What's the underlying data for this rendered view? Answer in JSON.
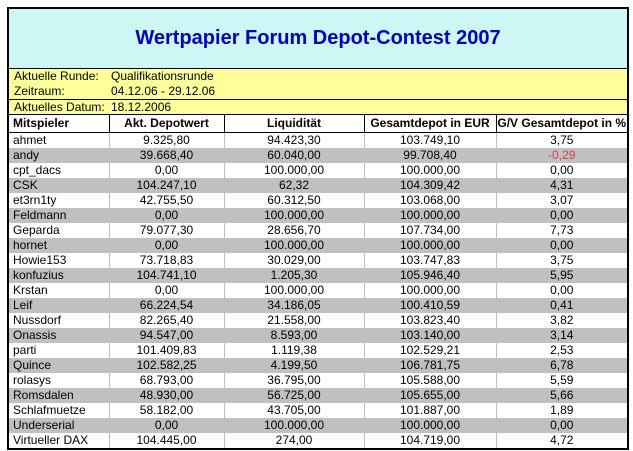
{
  "title": "Wertpapier Forum Depot-Contest 2007",
  "info": {
    "rows": [
      {
        "label": "Aktuelle Runde:",
        "value": "Qualifikationsrunde"
      },
      {
        "label": "Zeitraum:",
        "value": "04.12.06 - 29.12.06"
      },
      {
        "label": "Aktuelles Datum:",
        "value": "18.12.2006"
      }
    ]
  },
  "table": {
    "columns": [
      "Mitspieler",
      "Akt. Depotwert",
      "Liquidität",
      "Gesamtdepot in EUR",
      "G/V Gesamtdepot in %"
    ],
    "rows": [
      [
        "ahmet",
        "9.325,80",
        "94.423,30",
        "103.749,10",
        "3,75"
      ],
      [
        "andy",
        "39.668,40",
        "60.040,00",
        "99.708,40",
        "-0,29"
      ],
      [
        "cpt_dacs",
        "0,00",
        "100.000,00",
        "100.000,00",
        "0,00"
      ],
      [
        "CSK",
        "104.247,10",
        "62,32",
        "104.309,42",
        "4,31"
      ],
      [
        "et3rn1ty",
        "42.755,50",
        "60.312,50",
        "103.068,00",
        "3,07"
      ],
      [
        "Feldmann",
        "0,00",
        "100.000,00",
        "100.000,00",
        "0,00"
      ],
      [
        "Geparda",
        "79.077,30",
        "28.656,70",
        "107.734,00",
        "7,73"
      ],
      [
        "hornet",
        "0,00",
        "100.000,00",
        "100.000,00",
        "0,00"
      ],
      [
        "Howie153",
        "73.718,83",
        "30.029,00",
        "103.747,83",
        "3,75"
      ],
      [
        "konfuzius",
        "104.741,10",
        "1.205,30",
        "105.946,40",
        "5,95"
      ],
      [
        "Krstan",
        "0,00",
        "100.000,00",
        "100.000,00",
        "0,00"
      ],
      [
        "Leif",
        "66.224,54",
        "34.186,05",
        "100.410,59",
        "0,41"
      ],
      [
        "Nussdorf",
        "82.265,40",
        "21.558,00",
        "103.823,40",
        "3,82"
      ],
      [
        "Onassis",
        "94.547,00",
        "8.593,00",
        "103.140,00",
        "3,14"
      ],
      [
        "parti",
        "101.409,83",
        "1.119,38",
        "102.529,21",
        "2,53"
      ],
      [
        "Quince",
        "102.582,25",
        "4.199,50",
        "106.781,75",
        "6,78"
      ],
      [
        "rolasys",
        "68.793,00",
        "36.795,00",
        "105.588,00",
        "5,59"
      ],
      [
        "Romsdalen",
        "48.930,00",
        "56.725,00",
        "105.655,00",
        "5,66"
      ],
      [
        "Schlafmuetze",
        "58.182,00",
        "43.705,00",
        "101.887,00",
        "1,89"
      ],
      [
        "Underserial",
        "0,00",
        "100.000,00",
        "100.000,00",
        "0,00"
      ],
      [
        "Virtueller DAX",
        "104.445,00",
        "274,00",
        "104.719,00",
        "4,72"
      ]
    ]
  },
  "colors": {
    "title_blue": "#0000cc",
    "band_cyan": "#ccf7f5",
    "band_yellow": "#ffff99",
    "row_gray": "#c0c0c0",
    "negative_red": "#d24242"
  }
}
